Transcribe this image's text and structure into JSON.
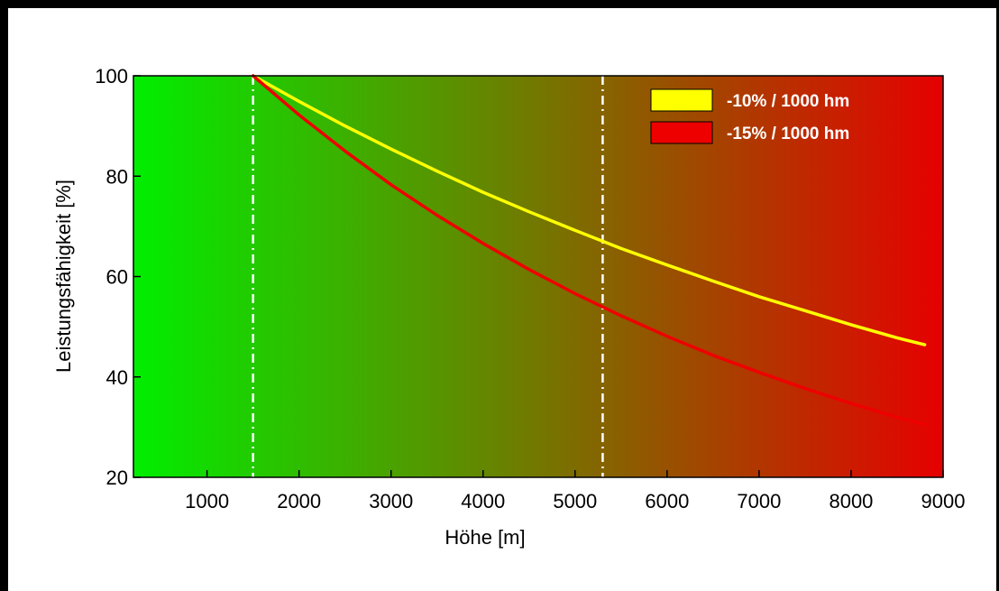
{
  "chart_data": {
    "type": "line",
    "title": "",
    "xlabel": "Höhe [m]",
    "ylabel": "Leistungsfähigkeit [%]",
    "xlim": [
      200,
      9000
    ],
    "ylim": [
      20,
      100
    ],
    "x_ticks": [
      1000,
      2000,
      3000,
      4000,
      5000,
      6000,
      7000,
      8000,
      9000
    ],
    "y_ticks": [
      20,
      40,
      60,
      80,
      100
    ],
    "x_tick_labels": [
      "1000",
      "2000",
      "3000",
      "4000",
      "5000",
      "6000",
      "7000",
      "8000",
      "9000"
    ],
    "y_tick_labels": [
      "20",
      "40",
      "60",
      "80",
      "100"
    ],
    "background_gradient": {
      "from": "#00ee00",
      "to": "#e60000",
      "direction": "left-to-right"
    },
    "reference_lines": [
      {
        "x": 1500,
        "style": "dash-dot",
        "color": "#ffffff"
      },
      {
        "x": 5300,
        "style": "dash-dot",
        "color": "#ffffff"
      }
    ],
    "legend": {
      "placement": "top-right"
    },
    "series": [
      {
        "name": "-10% / 1000 hm",
        "color": "#ffff00",
        "x": [
          1500,
          2000,
          2500,
          3000,
          3500,
          4000,
          4500,
          5000,
          5500,
          6000,
          6500,
          7000,
          7500,
          8000,
          8500,
          8800
        ],
        "values": [
          100,
          94.9,
          90.0,
          85.4,
          81.0,
          76.8,
          72.9,
          69.2,
          65.6,
          62.3,
          59.1,
          56.0,
          53.2,
          50.4,
          47.8,
          46.4
        ]
      },
      {
        "name": "-15% / 1000 hm",
        "color": "#ee0000",
        "x": [
          1500,
          2000,
          2500,
          3000,
          3500,
          4000,
          4500,
          5000,
          5500,
          6000,
          6500,
          7000,
          7500,
          8000,
          8500,
          8800
        ],
        "values": [
          100,
          92.2,
          85.0,
          78.3,
          72.2,
          66.6,
          61.4,
          56.6,
          52.2,
          48.1,
          44.3,
          40.9,
          37.7,
          34.7,
          32.0,
          30.5
        ]
      }
    ]
  }
}
